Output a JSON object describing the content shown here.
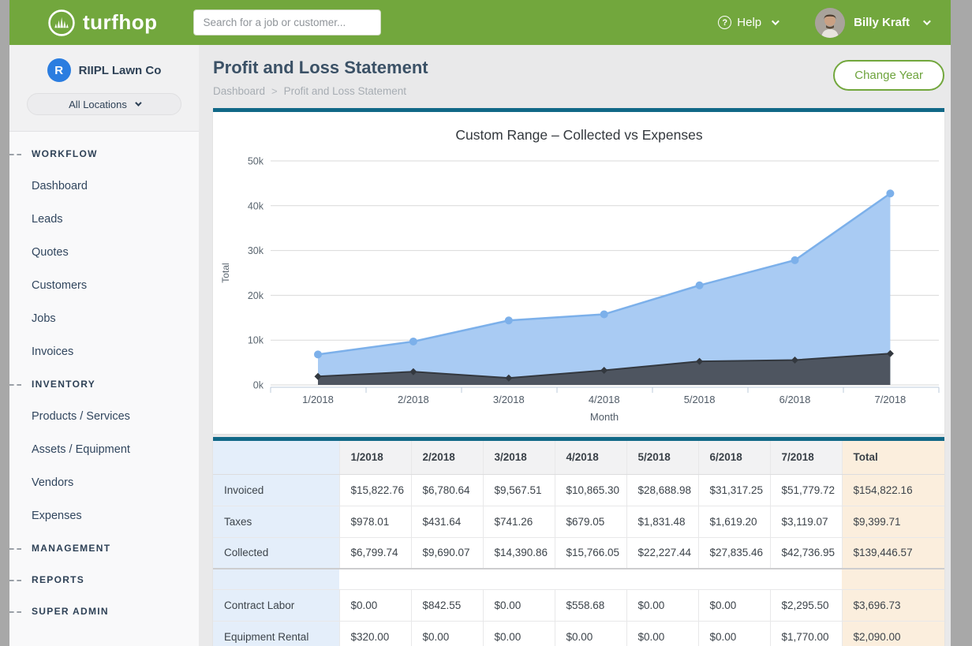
{
  "topbar": {
    "logo_text": "turfhop",
    "search_placeholder": "Search for a job or customer...",
    "help_label": "Help",
    "help_glyph": "?",
    "user_name": "Billy Kraft"
  },
  "sidebar": {
    "company_initial": "R",
    "company_name": "RIIPL Lawn Co",
    "locations_label": "All Locations",
    "sections": [
      {
        "header": "WORKFLOW",
        "items": [
          "Dashboard",
          "Leads",
          "Quotes",
          "Customers",
          "Jobs",
          "Invoices"
        ]
      },
      {
        "header": "INVENTORY",
        "items": [
          "Products / Services",
          "Assets / Equipment",
          "Vendors",
          "Expenses"
        ]
      },
      {
        "header": "MANAGEMENT",
        "items": []
      },
      {
        "header": "REPORTS",
        "items": []
      },
      {
        "header": "SUPER ADMIN",
        "items": []
      }
    ]
  },
  "page": {
    "title": "Profit and Loss Statement",
    "breadcrumb": [
      "Dashboard",
      "Profit and Loss Statement"
    ],
    "breadcrumb_separator": ">",
    "change_year_label": "Change Year"
  },
  "chart_data": {
    "type": "area",
    "title": "Custom Range – Collected vs Expenses",
    "xlabel": "Month",
    "ylabel": "Total",
    "categories": [
      "1/2018",
      "2/2018",
      "3/2018",
      "4/2018",
      "5/2018",
      "6/2018",
      "7/2018"
    ],
    "series": [
      {
        "name": "Collected",
        "values": [
          6799.74,
          9690.07,
          14390.86,
          15766.05,
          22227.44,
          27835.46,
          42736.95
        ]
      },
      {
        "name": "Expenses",
        "values": [
          1900,
          2950,
          1550,
          3250,
          5250,
          5550,
          7000
        ]
      }
    ],
    "ylim": [
      0,
      50000
    ],
    "ytick_step": 10000,
    "yticks": [
      "0k",
      "10k",
      "20k",
      "30k",
      "40k",
      "50k"
    ],
    "grid": true,
    "legend": "none"
  },
  "table": {
    "columns": [
      "",
      "1/2018",
      "2/2018",
      "3/2018",
      "4/2018",
      "5/2018",
      "6/2018",
      "7/2018",
      "Total"
    ],
    "groups": [
      {
        "rows": [
          {
            "label": "Invoiced",
            "values": [
              "$15,822.76",
              "$6,780.64",
              "$9,567.51",
              "$10,865.30",
              "$28,688.98",
              "$31,317.25",
              "$51,779.72"
            ],
            "total": "$154,822.16"
          },
          {
            "label": "Taxes",
            "values": [
              "$978.01",
              "$431.64",
              "$741.26",
              "$679.05",
              "$1,831.48",
              "$1,619.20",
              "$3,119.07"
            ],
            "total": "$9,399.71"
          },
          {
            "label": "Collected",
            "values": [
              "$6,799.74",
              "$9,690.07",
              "$14,390.86",
              "$15,766.05",
              "$22,227.44",
              "$27,835.46",
              "$42,736.95"
            ],
            "total": "$139,446.57"
          }
        ]
      },
      {
        "rows": [
          {
            "label": "Contract Labor",
            "values": [
              "$0.00",
              "$842.55",
              "$0.00",
              "$558.68",
              "$0.00",
              "$0.00",
              "$2,295.50"
            ],
            "total": "$3,696.73"
          },
          {
            "label": "Equipment Rental",
            "values": [
              "$320.00",
              "$0.00",
              "$0.00",
              "$0.00",
              "$0.00",
              "$0.00",
              "$1,770.00"
            ],
            "total": "$2,090.00"
          }
        ]
      }
    ]
  },
  "colors": {
    "brand_green": "#72a73d",
    "teal_bar": "#116887",
    "collected_line": "#7cb0ea",
    "collected_fill": "#a9cbf3",
    "expenses_line": "#33383f",
    "expenses_fill": "#4e5560",
    "grid_line": "#d9d9d9",
    "axis_line": "#bccbdb",
    "label_col_bg": "#e4eefa",
    "total_col_bg": "#fbeedd"
  }
}
